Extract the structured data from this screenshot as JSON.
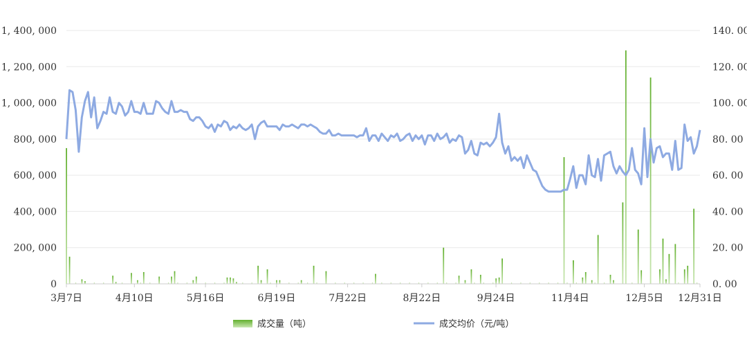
{
  "chart_data": {
    "type": "bar+line",
    "left_axis": {
      "ylim": [
        0,
        1400000
      ],
      "ticks": [
        "0",
        "200, 000",
        "400, 000",
        "600, 000",
        "800, 000",
        "1, 000, 000",
        "1, 200, 000",
        "1, 400, 000"
      ]
    },
    "right_axis": {
      "ylim": [
        0,
        140
      ],
      "ticks": [
        "0. 00",
        "20. 00",
        "40. 00",
        "60. 00",
        "80. 00",
        "100. 00",
        "120. 00",
        "140. 00"
      ]
    },
    "x_ticks": [
      {
        "label": "3月7日",
        "i": 0
      },
      {
        "label": "4月10日",
        "i": 22
      },
      {
        "label": "5月16日",
        "i": 45
      },
      {
        "label": "6月19日",
        "i": 68
      },
      {
        "label": "7月22日",
        "i": 91
      },
      {
        "label": "8月22日",
        "i": 115
      },
      {
        "label": "9月24日",
        "i": 139
      },
      {
        "label": "11月4日",
        "i": 163
      },
      {
        "label": "12月5日",
        "i": 187
      },
      {
        "label": "12月31日",
        "i": 205
      }
    ],
    "grid": true,
    "legend": {
      "position": "bottom",
      "items": [
        "成交量（吨）",
        "成交均价（元/吨）"
      ]
    },
    "colors": {
      "volume": "#6ab83a",
      "price": "#8eaae2"
    },
    "series": [
      {
        "name": "成交量（吨）",
        "axis": "left",
        "type": "bar",
        "points": [
          [
            0,
            750000
          ],
          [
            1,
            150000
          ],
          [
            5,
            25000
          ],
          [
            6,
            15000
          ],
          [
            15,
            45000
          ],
          [
            16,
            10000
          ],
          [
            21,
            60000
          ],
          [
            23,
            20000
          ],
          [
            25,
            65000
          ],
          [
            30,
            40000
          ],
          [
            34,
            40000
          ],
          [
            35,
            70000
          ],
          [
            41,
            20000
          ],
          [
            42,
            40000
          ],
          [
            52,
            35000
          ],
          [
            53,
            35000
          ],
          [
            54,
            30000
          ],
          [
            55,
            10000
          ],
          [
            62,
            100000
          ],
          [
            63,
            20000
          ],
          [
            65,
            80000
          ],
          [
            68,
            20000
          ],
          [
            69,
            20000
          ],
          [
            76,
            20000
          ],
          [
            80,
            100000
          ],
          [
            84,
            70000
          ],
          [
            100,
            55000
          ],
          [
            122,
            200000
          ],
          [
            127,
            45000
          ],
          [
            129,
            20000
          ],
          [
            131,
            80000
          ],
          [
            134,
            50000
          ],
          [
            139,
            30000
          ],
          [
            140,
            35000
          ],
          [
            141,
            140000
          ],
          [
            161,
            700000
          ],
          [
            164,
            130000
          ],
          [
            167,
            35000
          ],
          [
            168,
            65000
          ],
          [
            170,
            20000
          ],
          [
            172,
            270000
          ],
          [
            176,
            50000
          ],
          [
            177,
            20000
          ],
          [
            180,
            450000
          ],
          [
            181,
            1290000
          ],
          [
            185,
            300000
          ],
          [
            186,
            75000
          ],
          [
            189,
            1140000
          ],
          [
            192,
            80000
          ],
          [
            193,
            250000
          ],
          [
            194,
            25000
          ],
          [
            195,
            165000
          ],
          [
            197,
            220000
          ],
          [
            200,
            80000
          ],
          [
            201,
            100000
          ],
          [
            203,
            415000
          ]
        ]
      },
      {
        "name": "成交均价（元/吨）",
        "axis": "right",
        "type": "line",
        "values": [
          80,
          107,
          106,
          96,
          73,
          92,
          101,
          106,
          92,
          103,
          86,
          90,
          95,
          94,
          103,
          95,
          94,
          100,
          98,
          93,
          95,
          101,
          95,
          95,
          94,
          100,
          94,
          94,
          94,
          101,
          100,
          97,
          95,
          94,
          101,
          95,
          95,
          96,
          95,
          95,
          91,
          90,
          92,
          92,
          90,
          87,
          86,
          88,
          84,
          88,
          87,
          90,
          89,
          85,
          87,
          86,
          88,
          86,
          85,
          86,
          88,
          80,
          87,
          89,
          90,
          87,
          87,
          87,
          87,
          85,
          88,
          87,
          87,
          88,
          87,
          86,
          88,
          88,
          87,
          88,
          87,
          86,
          84,
          83,
          83,
          85,
          82,
          82,
          83,
          82,
          82,
          82,
          82,
          82,
          81,
          82,
          82,
          86,
          79,
          82,
          82,
          79,
          83,
          81,
          79,
          82,
          81,
          83,
          79,
          80,
          82,
          83,
          79,
          82,
          80,
          82,
          77,
          82,
          82,
          79,
          83,
          80,
          81,
          83,
          78,
          80,
          79,
          82,
          81,
          72,
          74,
          79,
          72,
          71,
          78,
          77,
          78,
          76,
          78,
          81,
          94,
          78,
          72,
          76,
          68,
          70,
          68,
          70,
          64,
          71,
          67,
          63,
          62,
          58,
          54,
          52,
          51,
          51,
          51,
          51,
          51,
          52,
          52,
          58,
          65,
          53,
          60,
          60,
          55,
          71,
          60,
          59,
          69,
          57,
          71,
          72,
          73,
          65,
          61,
          65,
          62,
          60,
          63,
          75,
          63,
          61,
          55,
          86,
          59,
          80,
          67,
          75,
          76,
          70,
          72,
          72,
          63,
          79,
          63,
          64,
          88,
          79,
          81,
          72,
          76,
          85
        ]
      }
    ]
  }
}
